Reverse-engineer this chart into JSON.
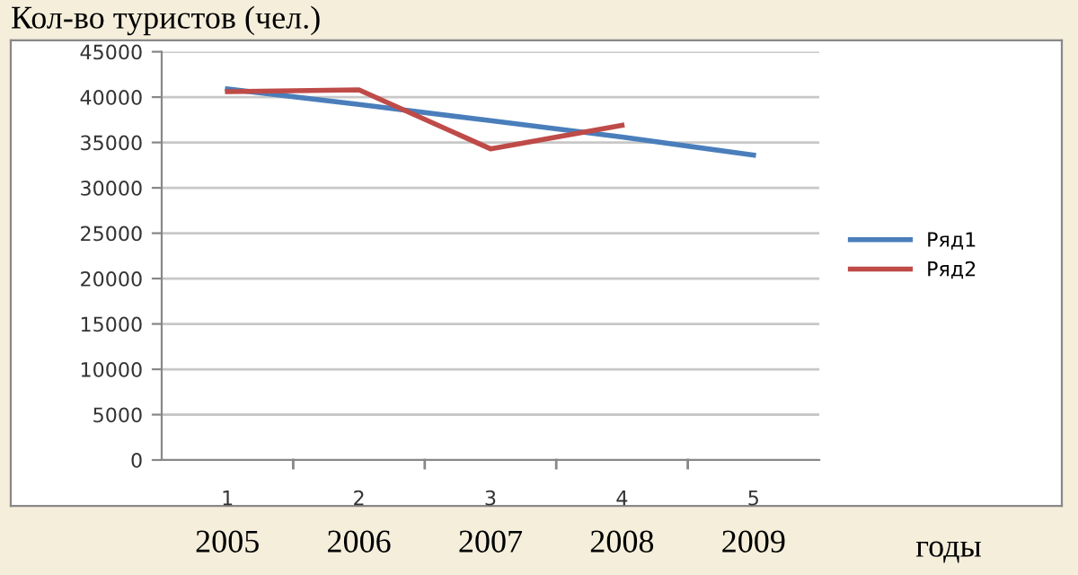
{
  "chart_data": {
    "type": "line",
    "title": "Кол-во туристов (чел.)",
    "xlabel": "годы",
    "categories": [
      "1",
      "2",
      "3",
      "4",
      "5"
    ],
    "series": [
      {
        "name": "Ряд1",
        "color": "#4a7ebb",
        "values": [
          40900,
          39200,
          37400,
          35600,
          33600
        ]
      },
      {
        "name": "Ряд2",
        "color": "#be4b48",
        "values": [
          40600,
          40800,
          34300,
          36900,
          null
        ]
      }
    ],
    "annotations": [
      "2005",
      "2006",
      "2007",
      "2008",
      "2009"
    ],
    "ylim": [
      0,
      45000
    ],
    "yticks": [
      0,
      5000,
      10000,
      15000,
      20000,
      25000,
      30000,
      35000,
      40000,
      45000
    ],
    "grid": "y",
    "legend": "right",
    "marker": "none",
    "line_style": "solid"
  }
}
